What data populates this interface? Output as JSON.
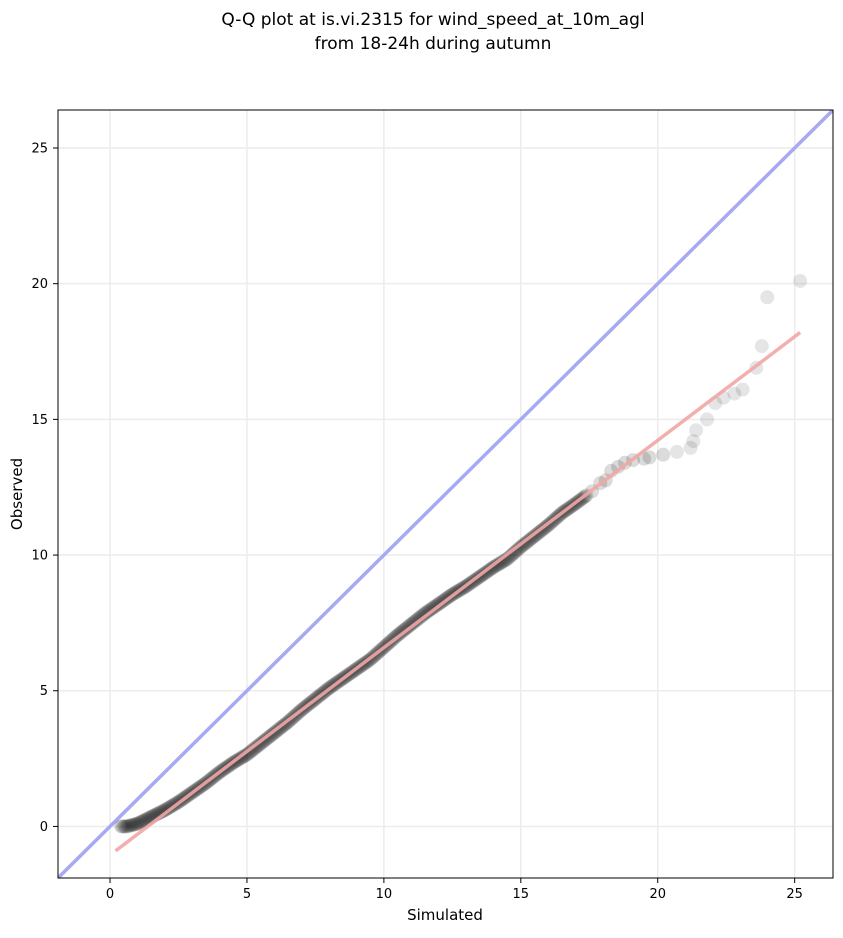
{
  "chart_data": {
    "type": "scatter",
    "title_lines": [
      "Q-Q plot at is.vi.2315 for wind_speed_at_10m_agl",
      "from 18-24h during autumn"
    ],
    "xlabel": "Simulated",
    "ylabel": "Observed",
    "xlim": [
      -1.9,
      26.4
    ],
    "ylim": [
      -1.9,
      26.4
    ],
    "xticks": [
      0,
      5,
      10,
      15,
      20,
      25
    ],
    "yticks": [
      0,
      5,
      10,
      15,
      20,
      25
    ],
    "grid": true,
    "legend": "none",
    "reference_line": {
      "name": "",
      "slope": 1,
      "intercept": 0,
      "color": "#a7a9f2"
    },
    "fit_line": {
      "name": "",
      "x": [
        0.2,
        25.2
      ],
      "y": [
        -0.9,
        18.2
      ],
      "color": "#f2a5a5"
    },
    "points_color": "#000000",
    "bulk_points": {
      "x_start": 0.4,
      "x_end": 17.4,
      "count": 430
    },
    "points": [
      [
        0.4,
        0.0
      ],
      [
        0.6,
        0.0
      ],
      [
        0.8,
        0.05
      ],
      [
        1.0,
        0.1
      ],
      [
        1.2,
        0.2
      ],
      [
        1.4,
        0.3
      ],
      [
        1.7,
        0.45
      ],
      [
        2.0,
        0.6
      ],
      [
        2.5,
        0.9
      ],
      [
        3.0,
        1.25
      ],
      [
        3.5,
        1.6
      ],
      [
        4.0,
        2.0
      ],
      [
        4.5,
        2.35
      ],
      [
        5.0,
        2.65
      ],
      [
        5.5,
        3.05
      ],
      [
        6.0,
        3.45
      ],
      [
        6.5,
        3.85
      ],
      [
        7.0,
        4.3
      ],
      [
        7.5,
        4.7
      ],
      [
        8.0,
        5.1
      ],
      [
        8.5,
        5.45
      ],
      [
        9.0,
        5.8
      ],
      [
        9.5,
        6.15
      ],
      [
        10.0,
        6.6
      ],
      [
        10.5,
        7.05
      ],
      [
        11.0,
        7.45
      ],
      [
        11.5,
        7.85
      ],
      [
        12.0,
        8.2
      ],
      [
        12.5,
        8.55
      ],
      [
        13.0,
        8.85
      ],
      [
        13.5,
        9.2
      ],
      [
        14.0,
        9.55
      ],
      [
        14.5,
        9.85
      ],
      [
        15.0,
        10.3
      ],
      [
        15.5,
        10.7
      ],
      [
        16.0,
        11.1
      ],
      [
        16.5,
        11.55
      ],
      [
        17.0,
        11.9
      ],
      [
        17.4,
        12.2
      ],
      [
        17.6,
        12.35
      ],
      [
        17.9,
        12.65
      ],
      [
        18.1,
        12.75
      ],
      [
        18.3,
        13.1
      ],
      [
        18.55,
        13.25
      ],
      [
        18.8,
        13.4
      ],
      [
        19.1,
        13.5
      ],
      [
        19.5,
        13.55
      ],
      [
        19.7,
        13.6
      ],
      [
        20.2,
        13.7
      ],
      [
        20.7,
        13.8
      ],
      [
        21.2,
        13.95
      ],
      [
        21.3,
        14.2
      ],
      [
        21.4,
        14.6
      ],
      [
        21.8,
        15.0
      ],
      [
        22.1,
        15.6
      ],
      [
        22.4,
        15.8
      ],
      [
        22.8,
        15.95
      ],
      [
        23.1,
        16.1
      ],
      [
        23.6,
        16.9
      ],
      [
        23.8,
        17.7
      ],
      [
        24.0,
        19.5
      ],
      [
        25.2,
        20.1
      ]
    ]
  }
}
